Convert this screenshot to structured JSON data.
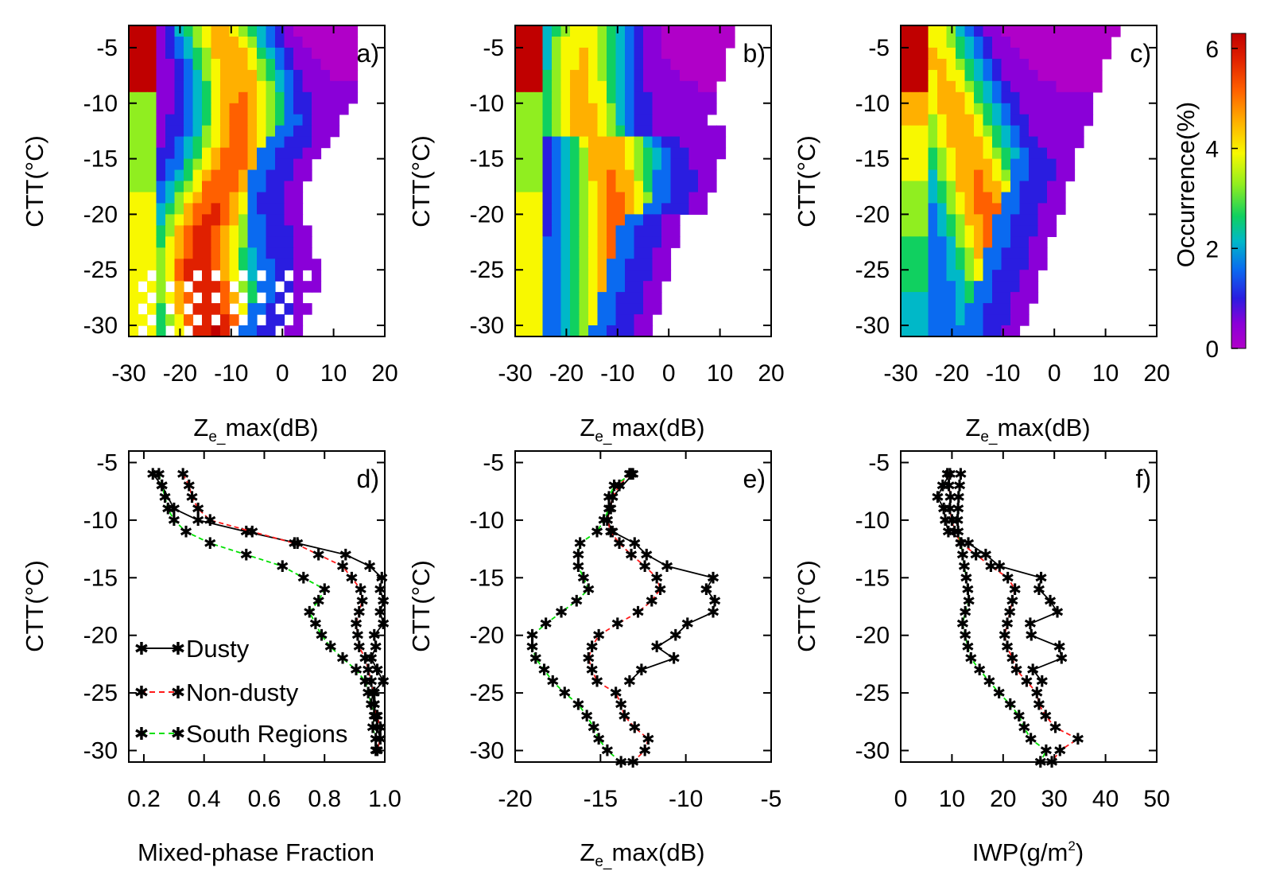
{
  "colors": {
    "dusty": "#000000",
    "non_dusty": "#ff1a1a",
    "south_regions": "#00e000",
    "colormap": [
      "#b000c8",
      "#8a00d8",
      "#2a1de0",
      "#0a6af0",
      "#00b8c8",
      "#10d060",
      "#90ee20",
      "#f8f800",
      "#ffb000",
      "#ff6000",
      "#e02000",
      "#c00000"
    ]
  },
  "colorbar": {
    "label": "Occurrence(%)",
    "ticks": [
      "0",
      "2",
      "4",
      "6"
    ],
    "range": [
      0,
      6.3
    ]
  },
  "chart_data": [
    {
      "type": "heatmap",
      "panel": "a)",
      "xlabel_main": "Z",
      "xlabel_sub": "e_",
      "xlabel_rest": "max(dB)",
      "ylabel": "CTT(°C)",
      "xlim": [
        -30,
        20
      ],
      "ylim": [
        -31,
        -3
      ],
      "xticks": [
        "-30",
        "-20",
        "-10",
        "0",
        "10",
        "20"
      ],
      "yticks": [
        "-5",
        "-10",
        "-15",
        "-20",
        "-25",
        "-30"
      ]
    },
    {
      "type": "heatmap",
      "panel": "b)",
      "xlabel_main": "Z",
      "xlabel_sub": "e_",
      "xlabel_rest": "max(dB)",
      "ylabel": "CTT(°C)",
      "xlim": [
        -30,
        20
      ],
      "ylim": [
        -31,
        -3
      ],
      "xticks": [
        "-30",
        "-20",
        "-10",
        "0",
        "10",
        "20"
      ],
      "yticks": [
        "-5",
        "-10",
        "-15",
        "-20",
        "-25",
        "-30"
      ]
    },
    {
      "type": "heatmap",
      "panel": "c)",
      "xlabel_main": "Z",
      "xlabel_sub": "e_",
      "xlabel_rest": "max(dB)",
      "ylabel": "CTT(°C)",
      "xlim": [
        -30,
        20
      ],
      "ylim": [
        -31,
        -3
      ],
      "xticks": [
        "-30",
        "-20",
        "-10",
        "0",
        "10",
        "20"
      ],
      "yticks": [
        "-5",
        "-10",
        "-15",
        "-20",
        "-25",
        "-30"
      ]
    },
    {
      "type": "line",
      "panel": "d)",
      "xlabel": "Mixed-phase Fraction",
      "ylabel": "CTT(°C)",
      "xlim": [
        0.15,
        1.0
      ],
      "ylim": [
        -31,
        -4
      ],
      "xticks": [
        "0.2",
        "0.4",
        "0.6",
        "0.8",
        "1.0"
      ],
      "yticks": [
        "-5",
        "-10",
        "-15",
        "-20",
        "-25",
        "-30"
      ],
      "legend": [
        "Dusty",
        "Non-dusty",
        "South Regions"
      ],
      "series": [
        {
          "name": "Dusty",
          "style": "solid",
          "y": [
            -6,
            -7,
            -9,
            -10,
            -11,
            -12,
            -13,
            -14,
            -15,
            -16,
            -17,
            -18,
            -19,
            -20,
            -21,
            -22,
            -23,
            -24,
            -25,
            -26,
            -27,
            -28,
            -29,
            -30
          ],
          "x": [
            0.23,
            0.26,
            0.3,
            0.38,
            0.54,
            0.71,
            0.87,
            0.95,
            0.99,
            0.985,
            0.995,
            0.985,
            0.995,
            0.965,
            0.97,
            0.955,
            0.975,
            0.995,
            0.96,
            0.965,
            0.97,
            0.975,
            0.985,
            0.975
          ]
        },
        {
          "name": "Non-dusty",
          "style": "dashed",
          "y": [
            -6,
            -7,
            -8,
            -9,
            -10,
            -11,
            -12,
            -13,
            -14,
            -15,
            -16,
            -17,
            -18,
            -19,
            -20,
            -21,
            -22,
            -23,
            -24,
            -25,
            -26,
            -27,
            -28,
            -29,
            -30
          ],
          "x": [
            0.33,
            0.35,
            0.36,
            0.38,
            0.42,
            0.56,
            0.7,
            0.78,
            0.86,
            0.89,
            0.92,
            0.925,
            0.915,
            0.905,
            0.91,
            0.915,
            0.935,
            0.945,
            0.955,
            0.965,
            0.965,
            0.975,
            0.985,
            0.985,
            0.975
          ]
        },
        {
          "name": "South Regions",
          "style": "dashed",
          "y": [
            -6,
            -7,
            -8,
            -9,
            -10,
            -11,
            -12,
            -13,
            -14,
            -15,
            -16,
            -17,
            -18,
            -19,
            -20,
            -21,
            -22,
            -23,
            -24,
            -25,
            -26,
            -27,
            -28,
            -29,
            -30
          ],
          "x": [
            0.25,
            0.26,
            0.27,
            0.28,
            0.3,
            0.34,
            0.42,
            0.54,
            0.66,
            0.73,
            0.8,
            0.78,
            0.75,
            0.77,
            0.79,
            0.82,
            0.86,
            0.905,
            0.935,
            0.945,
            0.955,
            0.965,
            0.96,
            0.97,
            0.97
          ]
        }
      ]
    },
    {
      "type": "line",
      "panel": "e)",
      "xlabel_main": "Z",
      "xlabel_sub": "e_",
      "xlabel_rest": "max(dB)",
      "ylabel": "CTT(°C)",
      "xlim": [
        -20,
        -5
      ],
      "ylim": [
        -31,
        -4
      ],
      "xticks": [
        "-20",
        "-15",
        "-10",
        "-5"
      ],
      "yticks": [
        "-5",
        "-10",
        "-15",
        "-20",
        "-25",
        "-30"
      ],
      "series": [
        {
          "name": "Dusty",
          "style": "solid",
          "y": [
            -6,
            -8,
            -10,
            -11,
            -12,
            -13,
            -14,
            -15,
            -16,
            -17,
            -18,
            -19,
            -20,
            -21,
            -22,
            -23,
            -24
          ],
          "x": [
            -13.1,
            -14.3,
            -14.6,
            -14.3,
            -13.0,
            -12.3,
            -11.1,
            -8.4,
            -8.8,
            -8.3,
            -8.4,
            -9.9,
            -10.6,
            -11.7,
            -10.7,
            -12.6,
            -13.3
          ]
        },
        {
          "name": "Non-dusty",
          "style": "dashed",
          "y": [
            -6,
            -7,
            -8,
            -9,
            -10,
            -11,
            -12,
            -13,
            -14,
            -15,
            -16,
            -17,
            -18,
            -19,
            -20,
            -21,
            -22,
            -23,
            -24,
            -25,
            -26,
            -27,
            -28,
            -29,
            -30,
            -31
          ],
          "x": [
            -13.3,
            -13.9,
            -14.3,
            -14.4,
            -14.6,
            -14.4,
            -13.9,
            -13.2,
            -12.4,
            -11.7,
            -11.5,
            -12.0,
            -12.8,
            -14.0,
            -15.1,
            -15.5,
            -15.7,
            -15.5,
            -15.2,
            -14.1,
            -13.8,
            -13.6,
            -13.0,
            -12.2,
            -12.4,
            -13.1
          ]
        },
        {
          "name": "South Regions",
          "style": "dashed",
          "y": [
            -6,
            -7,
            -8,
            -9,
            -10,
            -11,
            -12,
            -13,
            -14,
            -15,
            -16,
            -17,
            -18,
            -19,
            -20,
            -21,
            -22,
            -23,
            -24,
            -25,
            -26,
            -27,
            -28,
            -29,
            -30,
            -31
          ],
          "x": [
            -13.2,
            -14.2,
            -14.5,
            -14.5,
            -14.8,
            -15.2,
            -16.2,
            -16.3,
            -16.3,
            -16.0,
            -15.7,
            -16.4,
            -17.3,
            -18.2,
            -19.0,
            -19.0,
            -18.8,
            -18.3,
            -17.8,
            -17.1,
            -16.3,
            -15.8,
            -15.4,
            -15.1,
            -14.6,
            -13.8
          ]
        }
      ]
    },
    {
      "type": "line",
      "panel": "f)",
      "xlabel": "IWP(g/m",
      "xlabel_sup": "2",
      "xlabel_end": ")",
      "ylabel": "CTT(°C)",
      "xlim": [
        0,
        50
      ],
      "ylim": [
        -31,
        -4
      ],
      "xticks": [
        "0",
        "10",
        "20",
        "30",
        "40",
        "50"
      ],
      "yticks": [
        "-5",
        "-10",
        "-15",
        "-20",
        "-25",
        "-30"
      ],
      "series": [
        {
          "name": "Dusty",
          "style": "solid",
          "y": [
            -6,
            -7,
            -8,
            -9,
            -10,
            -11,
            -12,
            -13,
            -14,
            -15,
            -16,
            -17,
            -18,
            -19,
            -20,
            -21,
            -22,
            -23,
            -24
          ],
          "x": [
            9.6,
            8.2,
            7.2,
            8.4,
            8.7,
            9.3,
            13.2,
            16.6,
            19.3,
            27.4,
            27.0,
            29.2,
            30.6,
            25.3,
            25.5,
            31.0,
            31.4,
            25.8,
            27.6
          ]
        },
        {
          "name": "Non-dusty",
          "style": "dashed",
          "y": [
            -6,
            -7,
            -8,
            -9,
            -10,
            -11,
            -12,
            -13,
            -14,
            -15,
            -16,
            -17,
            -18,
            -19,
            -20,
            -21,
            -22,
            -23,
            -24,
            -25,
            -26,
            -27,
            -28,
            -29,
            -30,
            -31
          ],
          "x": [
            9.1,
            9.4,
            9.7,
            9.6,
            10.0,
            10.5,
            11.8,
            14.7,
            17.6,
            20.9,
            22.3,
            21.8,
            21.3,
            20.8,
            20.3,
            20.8,
            21.8,
            22.6,
            24.6,
            26.6,
            27.0,
            28.3,
            30.2,
            34.6,
            31.1,
            29.5
          ]
        },
        {
          "name": "South Regions",
          "style": "dashed",
          "y": [
            -6,
            -7,
            -8,
            -9,
            -10,
            -11,
            -12,
            -13,
            -14,
            -15,
            -16,
            -17,
            -18,
            -19,
            -20,
            -21,
            -22,
            -23,
            -24,
            -25,
            -26,
            -27,
            -28,
            -29,
            -30,
            -31
          ],
          "x": [
            11.7,
            11.5,
            11.3,
            11.2,
            11.1,
            11.2,
            11.7,
            12.1,
            12.4,
            12.8,
            13.1,
            13.3,
            12.6,
            12.1,
            12.6,
            13.1,
            13.7,
            15.4,
            17.3,
            19.2,
            21.4,
            23.1,
            24.1,
            25.4,
            28.4,
            27.3
          ]
        }
      ]
    }
  ]
}
